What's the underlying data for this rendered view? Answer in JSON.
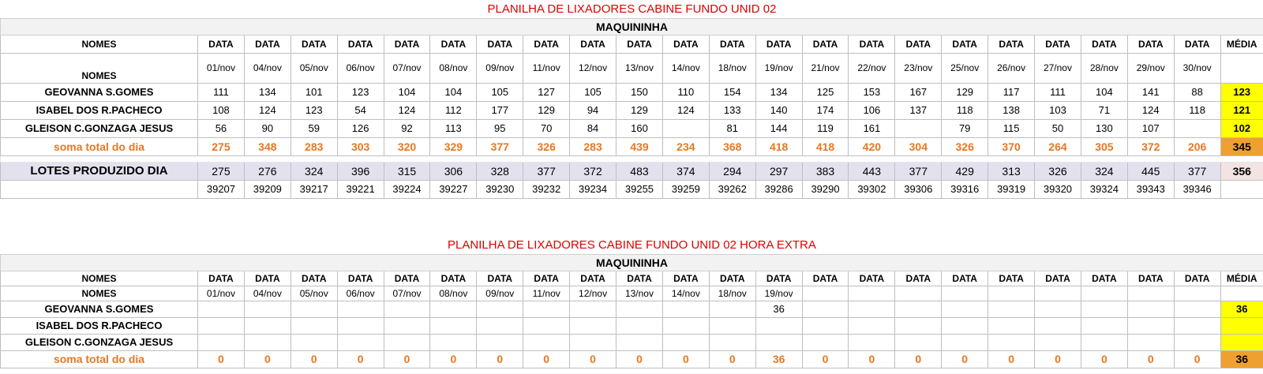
{
  "section1": {
    "title": "PLANILHA DE LIXADORES CABINE FUNDO UNID 02",
    "subtitle": "MAQUININHA",
    "col_names_label": "NOMES",
    "date_label": "DATA",
    "avg_label": "MÉDIA",
    "dates": [
      "01/nov",
      "04/nov",
      "05/nov",
      "06/nov",
      "07/nov",
      "08/nov",
      "09/nov",
      "11/nov",
      "12/nov",
      "13/nov",
      "14/nov",
      "18/nov",
      "19/nov",
      "21/nov",
      "22/nov",
      "23/nov",
      "25/nov",
      "26/nov",
      "27/nov",
      "28/nov",
      "29/nov",
      "30/nov"
    ],
    "rows": [
      {
        "name": "GEOVANNA S.GOMES",
        "values": [
          "111",
          "134",
          "101",
          "123",
          "104",
          "104",
          "105",
          "127",
          "105",
          "150",
          "110",
          "154",
          "134",
          "125",
          "153",
          "167",
          "129",
          "117",
          "111",
          "104",
          "141",
          "88"
        ],
        "avg": "123"
      },
      {
        "name": "ISABEL DOS R.PACHECO",
        "values": [
          "108",
          "124",
          "123",
          "54",
          "124",
          "112",
          "177",
          "129",
          "94",
          "129",
          "124",
          "133",
          "140",
          "174",
          "106",
          "137",
          "118",
          "138",
          "103",
          "71",
          "124",
          "118"
        ],
        "avg": "121"
      },
      {
        "name": "GLEISON C.GONZAGA JESUS",
        "values": [
          "56",
          "90",
          "59",
          "126",
          "92",
          "113",
          "95",
          "70",
          "84",
          "160",
          "",
          "81",
          "144",
          "119",
          "161",
          "",
          "79",
          "115",
          "50",
          "130",
          "107",
          ""
        ],
        "avg": "102"
      }
    ],
    "sum": {
      "label": "soma total  do dia",
      "values": [
        "275",
        "348",
        "283",
        "303",
        "320",
        "329",
        "377",
        "326",
        "283",
        "439",
        "234",
        "368",
        "418",
        "418",
        "420",
        "304",
        "326",
        "370",
        "264",
        "305",
        "372",
        "206"
      ],
      "avg": "345"
    },
    "lotes": {
      "label": "LOTES PRODUZIDO DIA",
      "values": [
        "275",
        "276",
        "324",
        "396",
        "315",
        "306",
        "328",
        "377",
        "372",
        "483",
        "374",
        "294",
        "297",
        "383",
        "443",
        "377",
        "429",
        "313",
        "326",
        "324",
        "445",
        "377"
      ],
      "avg": "356"
    },
    "lot_numbers": [
      "39207",
      "39209",
      "39217",
      "39221",
      "39224",
      "39227",
      "39230",
      "39232",
      "39234",
      "39255",
      "39259",
      "39262",
      "39286",
      "39290",
      "39302",
      "39306",
      "39316",
      "39319",
      "39320",
      "39324",
      "39343",
      "39346"
    ]
  },
  "section2": {
    "title": "PLANILHA DE LIXADORES CABINE FUNDO UNID 02 HORA EXTRA",
    "subtitle": "MAQUININHA",
    "col_names_label": "NOMES",
    "date_label": "DATA",
    "avg_label": "MÉDIA",
    "dates": [
      "01/nov",
      "04/nov",
      "05/nov",
      "06/nov",
      "07/nov",
      "08/nov",
      "09/nov",
      "11/nov",
      "12/nov",
      "13/nov",
      "14/nov",
      "18/nov",
      "19/nov",
      "",
      "",
      "",
      "",
      "",
      "",
      "",
      "",
      ""
    ],
    "rows": [
      {
        "name": "GEOVANNA S.GOMES",
        "values": [
          "",
          "",
          "",
          "",
          "",
          "",
          "",
          "",
          "",
          "",
          "",
          "",
          "36",
          "",
          "",
          "",
          "",
          "",
          "",
          "",
          "",
          ""
        ],
        "avg": "36"
      },
      {
        "name": "ISABEL DOS R.PACHECO",
        "values": [
          "",
          "",
          "",
          "",
          "",
          "",
          "",
          "",
          "",
          "",
          "",
          "",
          "",
          "",
          "",
          "",
          "",
          "",
          "",
          "",
          "",
          ""
        ],
        "avg": ""
      },
      {
        "name": "GLEISON C.GONZAGA JESUS",
        "values": [
          "",
          "",
          "",
          "",
          "",
          "",
          "",
          "",
          "",
          "",
          "",
          "",
          "",
          "",
          "",
          "",
          "",
          "",
          "",
          "",
          "",
          ""
        ],
        "avg": ""
      }
    ],
    "sum": {
      "label": "soma total  do dia",
      "values": [
        "0",
        "0",
        "0",
        "0",
        "0",
        "0",
        "0",
        "0",
        "0",
        "0",
        "0",
        "0",
        "36",
        "0",
        "0",
        "0",
        "0",
        "0",
        "0",
        "0",
        "0",
        "0"
      ],
      "avg": "36"
    }
  }
}
